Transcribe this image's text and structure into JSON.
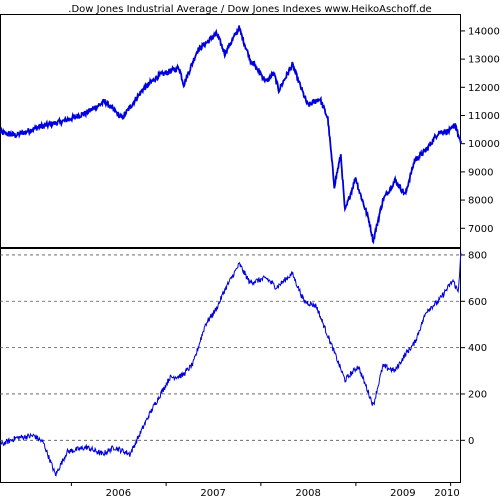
{
  "chart_data": {
    "title": ".Dow Jones Industrial Average / Dow Jones Indexes www.HeikoAschoff.de",
    "x_axis": {
      "type": "time",
      "range": [
        "2005-04-01",
        "2010-02-10"
      ],
      "ticks": [
        "2006",
        "2007",
        "2008",
        "2009",
        "2010"
      ]
    },
    "line_color": "#0000dd",
    "grid_color": "#555555",
    "panels": [
      {
        "type": "line",
        "name": "upper",
        "ylim": [
          6300,
          14600
        ],
        "yticks": [
          7000,
          8000,
          9000,
          10000,
          11000,
          12000,
          13000,
          14000
        ],
        "grid": false,
        "x": [
          "2005-04-01",
          "2005-06-01",
          "2005-09-01",
          "2005-12-01",
          "2006-03-01",
          "2006-05-10",
          "2006-07-15",
          "2006-10-01",
          "2006-12-01",
          "2007-02-20",
          "2007-03-10",
          "2007-05-01",
          "2007-07-15",
          "2007-08-15",
          "2007-10-09",
          "2007-11-20",
          "2008-01-22",
          "2008-02-20",
          "2008-03-10",
          "2008-05-01",
          "2008-06-30",
          "2008-08-15",
          "2008-09-15",
          "2008-10-10",
          "2008-11-04",
          "2008-11-20",
          "2008-12-31",
          "2009-01-15",
          "2009-02-20",
          "2009-03-09",
          "2009-04-15",
          "2009-06-01",
          "2009-07-10",
          "2009-08-15",
          "2009-10-01",
          "2009-11-15",
          "2009-12-31",
          "2010-01-19",
          "2010-02-08",
          "2010-02-10"
        ],
        "y": [
          10400,
          10300,
          10600,
          10800,
          11100,
          11500,
          10900,
          11900,
          12400,
          12700,
          12100,
          13300,
          13900,
          13200,
          14100,
          13000,
          12200,
          12500,
          11900,
          12800,
          11350,
          11600,
          10900,
          8500,
          9600,
          7600,
          8800,
          8300,
          7300,
          6550,
          8000,
          8700,
          8200,
          9400,
          9800,
          10400,
          10450,
          10700,
          10000,
          10100
        ]
      },
      {
        "type": "line",
        "name": "lower",
        "ylim": [
          -180,
          830
        ],
        "yticks": [
          0,
          200,
          400,
          600,
          800
        ],
        "grid": true,
        "x": [
          "2005-04-01",
          "2005-06-01",
          "2005-08-10",
          "2005-09-15",
          "2005-11-01",
          "2005-12-15",
          "2006-03-01",
          "2006-05-01",
          "2006-06-15",
          "2006-08-15",
          "2006-11-01",
          "2007-01-15",
          "2007-03-05",
          "2007-04-15",
          "2007-06-01",
          "2007-07-15",
          "2007-08-15",
          "2007-10-10",
          "2007-11-20",
          "2008-01-22",
          "2008-03-01",
          "2008-05-01",
          "2008-06-15",
          "2008-08-01",
          "2008-10-10",
          "2008-11-20",
          "2009-01-10",
          "2009-02-10",
          "2009-03-09",
          "2009-04-15",
          "2009-06-01",
          "2009-07-10",
          "2009-08-15",
          "2009-10-01",
          "2009-11-15",
          "2010-01-10",
          "2010-01-30",
          "2010-02-10"
        ],
        "y": [
          -20,
          10,
          20,
          -10,
          -150,
          -50,
          -30,
          -60,
          -30,
          -60,
          120,
          270,
          280,
          330,
          500,
          570,
          650,
          760,
          680,
          700,
          660,
          720,
          600,
          580,
          380,
          260,
          320,
          230,
          150,
          320,
          300,
          370,
          420,
          560,
          600,
          690,
          640,
          810
        ]
      }
    ]
  }
}
